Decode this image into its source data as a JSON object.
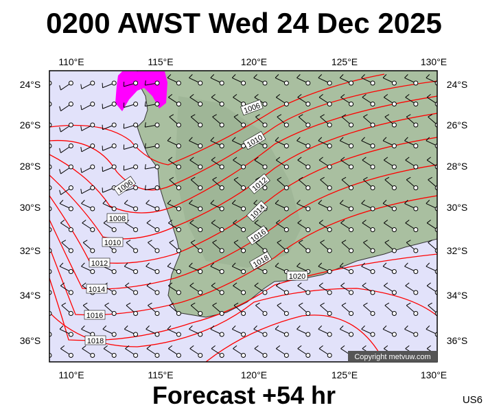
{
  "header": {
    "title": "0200 AWST Wed 24 Dec 2025"
  },
  "footer": {
    "forecast": "Forecast +54 hr",
    "code": "US6"
  },
  "copyright": "Copyright metvuw.com",
  "map": {
    "lon_ticks": [
      "110°E",
      "115°E",
      "120°E",
      "125°E",
      "130°E"
    ],
    "lat_ticks": [
      "24°S",
      "26°S",
      "28°S",
      "30°S",
      "32°S",
      "34°S",
      "36°S"
    ],
    "isobar_labels": [
      "1006",
      "1008",
      "1010",
      "1012",
      "1014",
      "1016",
      "1018",
      "1020"
    ],
    "colors": {
      "ocean": "#e2e2fa",
      "land": "#a9bfa0",
      "isobar": "#ff0000",
      "rain": "#ff00ff"
    }
  }
}
